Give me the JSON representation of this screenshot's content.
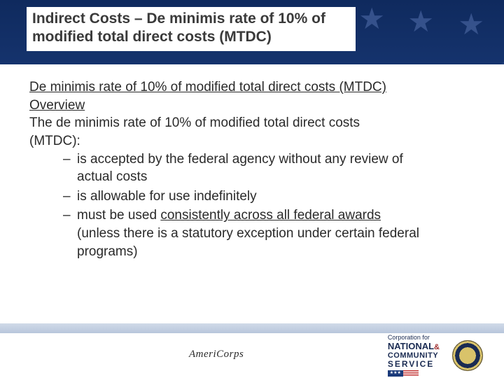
{
  "header": {
    "title_line1": "Indirect Costs – De minimis rate of 10% of",
    "title_line2": "modified total direct costs (MTDC)"
  },
  "content": {
    "overview_line1": "De minimis rate of 10% of modified total direct costs (MTDC)",
    "overview_line2": "Overview",
    "intro_line1": "The de minimis rate of 10% of modified total direct costs",
    "intro_line2": "(MTDC):",
    "bullets": [
      {
        "line1": "is accepted by the federal agency without any review of",
        "line2": "actual costs"
      },
      {
        "line1": "is allowable for use indefinitely",
        "line2": ""
      },
      {
        "pre": "must be used ",
        "u": "consistently across all federal awards",
        "post1": "(unless there is a statutory exception under certain federal",
        "post2": "programs)"
      }
    ]
  },
  "footer": {
    "americorps": "AmeriCorps",
    "cncs_top": "Corporation for",
    "cncs_national": "NATIONAL",
    "cncs_amp": "&",
    "cncs_community": "COMMUNITY",
    "cncs_service": "SERVICE",
    "flag_stars": "★★★"
  },
  "colors": {
    "header_bg_top": "#0f2a5e",
    "header_bg_bottom": "#15336d",
    "text": "#2a2a2a",
    "footer_bar_top": "#d0dae8",
    "footer_bar_bottom": "#b8c6dc",
    "cncs_blue": "#1a2b52",
    "cncs_red": "#a03030"
  }
}
